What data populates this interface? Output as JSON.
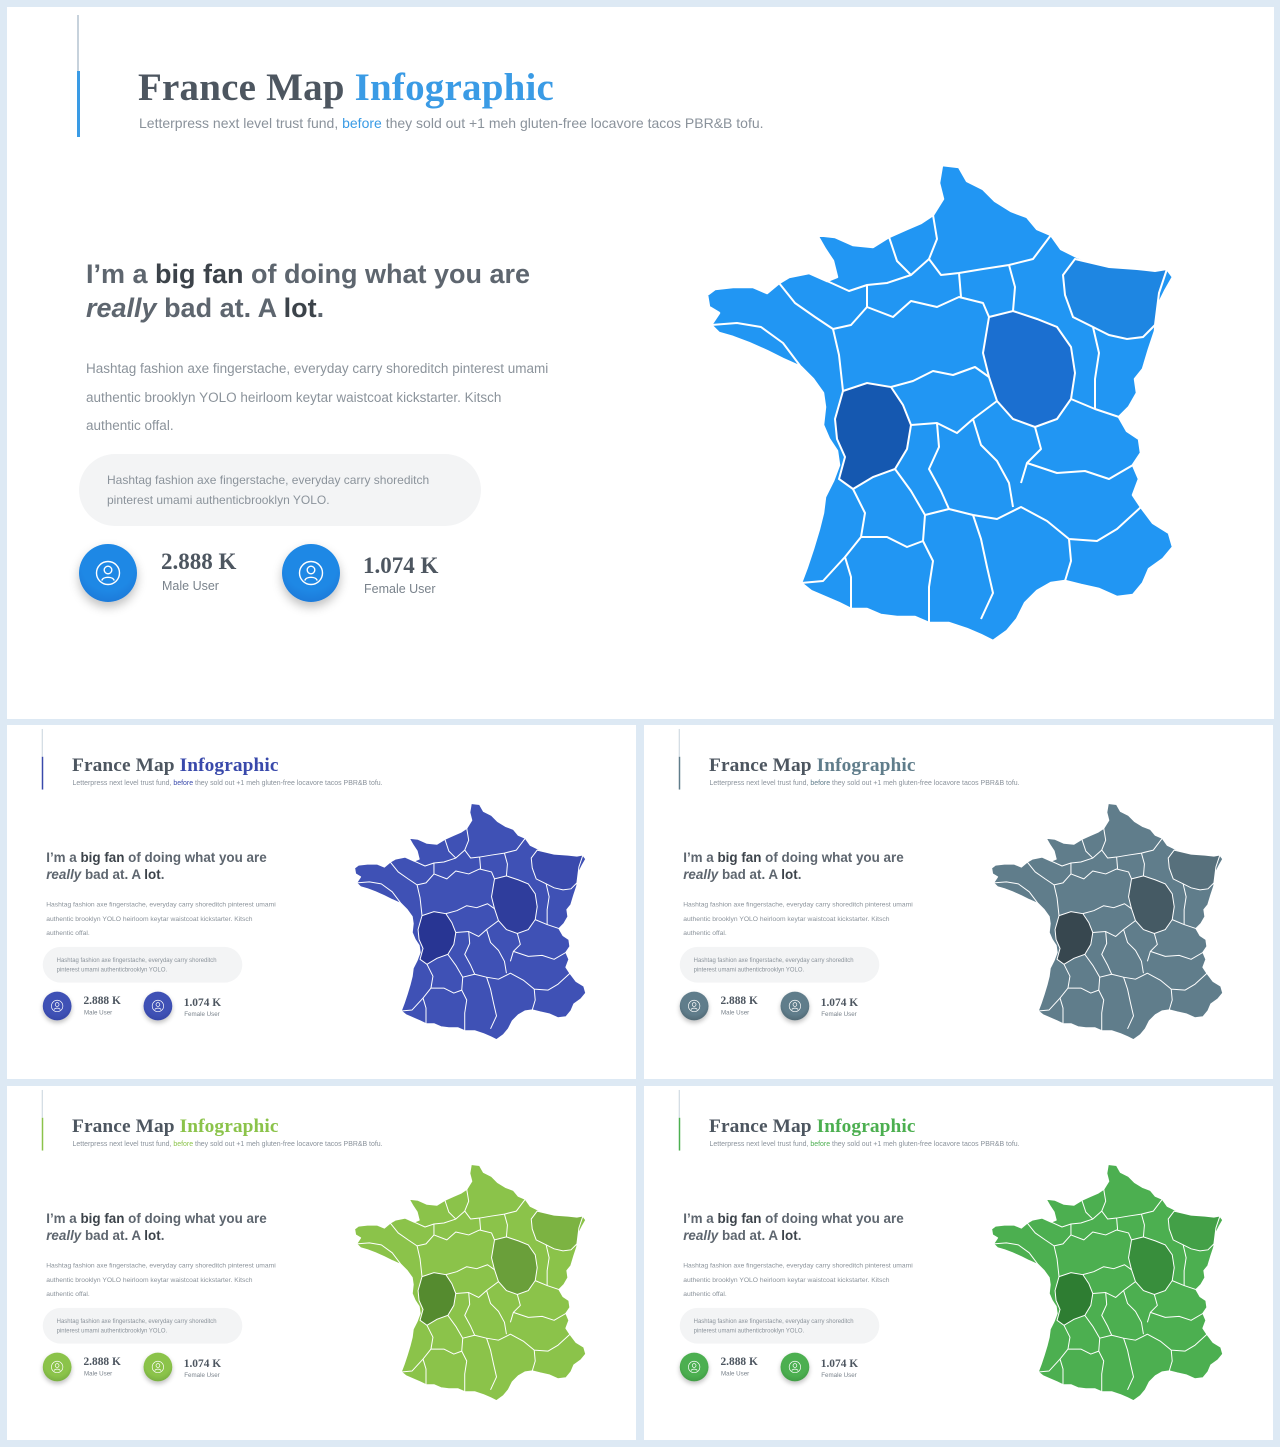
{
  "slide": {
    "title_main": "France Map",
    "title_accent": "Infographic",
    "subtitle_before": "Letterpress next level trust fund,",
    "subtitle_link": "before",
    "subtitle_after": "they sold out +1 meh gluten-free locavore tacos PBR&B tofu.",
    "headline": {
      "p1": "I’m a ",
      "b1": "big fan",
      "p2": " of doing what you are",
      "i1": "really",
      "p3": " bad at. A ",
      "b2": "lot",
      "p4": "."
    },
    "body_line1": "Hashtag fashion axe fingerstache, everyday carry shoreditch pinterest umami",
    "body_line2": "authentic brooklyn YOLO heirloom keytar waistcoat kickstarter. Kitsch",
    "body_line3": "authentic offal.",
    "quote_line1": "Hashtag fashion axe fingerstache, everyday carry shoreditch",
    "quote_line2": "pinterest umami authenticbrooklyn YOLO.",
    "stats": [
      {
        "value": "2.888 K",
        "label": "Male User",
        "icon": "user-icon"
      },
      {
        "value": "1.074 K",
        "label": "Female User",
        "icon": "user-icon"
      }
    ]
  },
  "themes": [
    {
      "name": "blue",
      "accent": "#3a9be5",
      "map_base": "#2196f3",
      "map_dark1": "#1b6fd0",
      "map_dark2": "#1558b0",
      "map_mid": "#1e86e2",
      "circle": "#1e88e5"
    },
    {
      "name": "indigo",
      "accent": "#3949ab",
      "map_base": "#3f51b5",
      "map_dark1": "#2f3d9c",
      "map_dark2": "#283593",
      "map_mid": "#3a4aad",
      "circle": "#3f51b5"
    },
    {
      "name": "slate",
      "accent": "#607d8b",
      "map_base": "#607d8b",
      "map_dark1": "#455a64",
      "map_dark2": "#37474f",
      "map_mid": "#57707c",
      "circle": "#607d8b"
    },
    {
      "name": "lime",
      "accent": "#8bc34a",
      "map_base": "#8bc34a",
      "map_dark1": "#6a9f3a",
      "map_dark2": "#558b2f",
      "map_mid": "#7cb342",
      "circle": "#8bc34a"
    },
    {
      "name": "green",
      "accent": "#4caf50",
      "map_base": "#4caf50",
      "map_dark1": "#388e3c",
      "map_dark2": "#2e7d32",
      "map_mid": "#43a047",
      "circle": "#4caf50"
    }
  ]
}
